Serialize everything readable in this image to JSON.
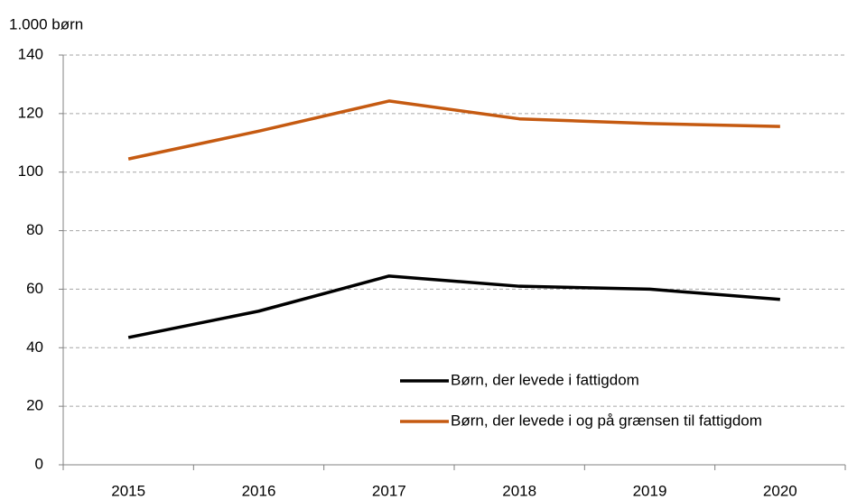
{
  "chart_data": {
    "type": "line",
    "y_axis_label": "1.000 børn",
    "categories": [
      "2015",
      "2016",
      "2017",
      "2018",
      "2019",
      "2020"
    ],
    "series": [
      {
        "name": "Børn, der levede i fattigdom",
        "color": "#000000",
        "values": [
          43.5,
          52.5,
          64.5,
          61,
          60,
          56.5
        ]
      },
      {
        "name": "Børn, der levede i og på grænsen til fattigdom",
        "color": "#c55a11",
        "values": [
          104.5,
          114,
          124.3,
          118.2,
          116.6,
          115.6
        ]
      }
    ],
    "ylim": [
      0,
      140
    ],
    "yticks": [
      0,
      20,
      40,
      60,
      80,
      100,
      120,
      140
    ],
    "grid": true,
    "legend": "lower-right"
  }
}
